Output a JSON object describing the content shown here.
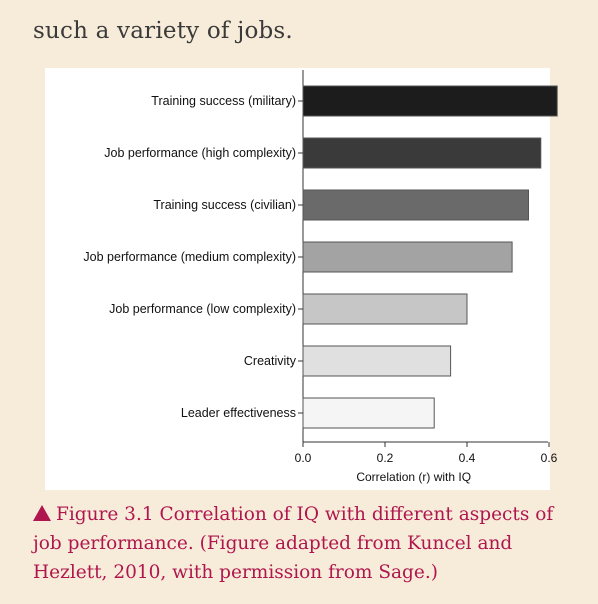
{
  "intro_text": "such a variety of jobs.",
  "caption": {
    "text": "Figure 3.1  Correlation of IQ with different aspects of job performance. (Figure adapted from Kuncel and Hezlett, 2010, with permission from Sage.)",
    "color": "#b0164e"
  },
  "chart_data": {
    "type": "bar",
    "orientation": "horizontal",
    "categories": [
      "Training success (military)",
      "Job performance (high complexity)",
      "Training success (civilian)",
      "Job performance (medium complexity)",
      "Job performance (low complexity)",
      "Creativity",
      "Leader effectiveness"
    ],
    "values": [
      0.62,
      0.58,
      0.55,
      0.51,
      0.4,
      0.36,
      0.32
    ],
    "bar_colors": [
      "#1c1c1c",
      "#3a3a3a",
      "#6a6a6a",
      "#a3a3a3",
      "#c6c6c6",
      "#e0e0e0",
      "#f5f5f5"
    ],
    "xlabel": "Correlation (r) with IQ",
    "xticks": [
      "0.0",
      "0.2",
      "0.4",
      "0.6"
    ],
    "tick_values": [
      0,
      0.2,
      0.4,
      0.6
    ],
    "xlim": [
      0,
      0.7
    ],
    "grid": false
  }
}
